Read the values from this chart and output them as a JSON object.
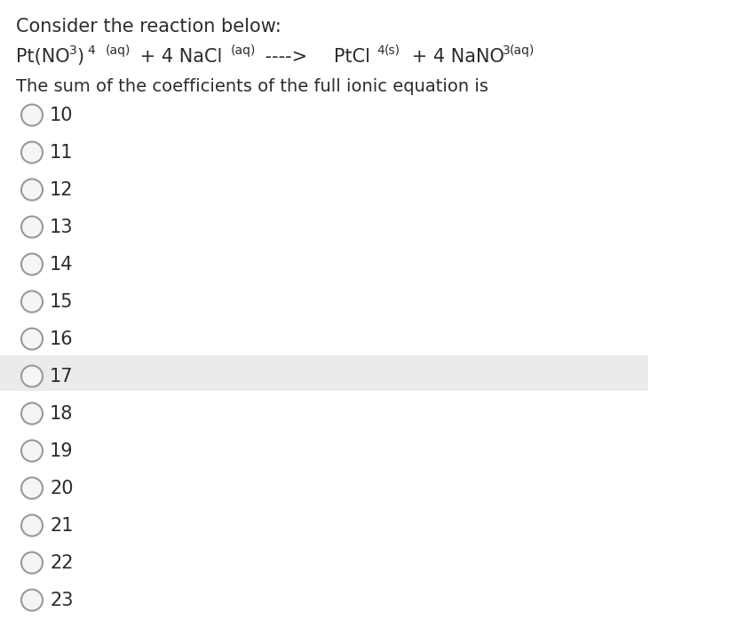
{
  "background_color": "#ffffff",
  "header_line1": "Consider the reaction below:",
  "question": "The sum of the coefficients of the full ionic equation is",
  "options": [
    "10",
    "11",
    "12",
    "13",
    "14",
    "15",
    "16",
    "17",
    "18",
    "19",
    "20",
    "21",
    "22",
    "23"
  ],
  "highlighted_option": "17",
  "highlight_color": "#ebebeb",
  "text_color": "#2c2c2c",
  "circle_edge_color": "#999999",
  "circle_fill_color": "#f5f5f5",
  "font_size_main": 15,
  "font_size_sub": 10,
  "font_size_question": 14,
  "font_size_options": 15,
  "eq_segments": [
    [
      "Pt(NO",
      15,
      0
    ],
    [
      "3",
      10,
      -4
    ],
    [
      ")",
      15,
      0
    ],
    [
      "4",
      10,
      -4
    ],
    [
      " ",
      15,
      0
    ],
    [
      "(aq)",
      10,
      -4
    ],
    [
      " + 4 NaCl",
      15,
      0
    ],
    [
      "(aq)",
      10,
      -4
    ],
    [
      " ----> ",
      15,
      0
    ],
    [
      "PtCl",
      15,
      0
    ],
    [
      "4",
      10,
      -4
    ],
    [
      "(s)",
      10,
      -4
    ],
    [
      " + 4 NaNO",
      15,
      0
    ],
    [
      "3",
      10,
      -4
    ],
    [
      "(aq)",
      10,
      -4
    ]
  ]
}
